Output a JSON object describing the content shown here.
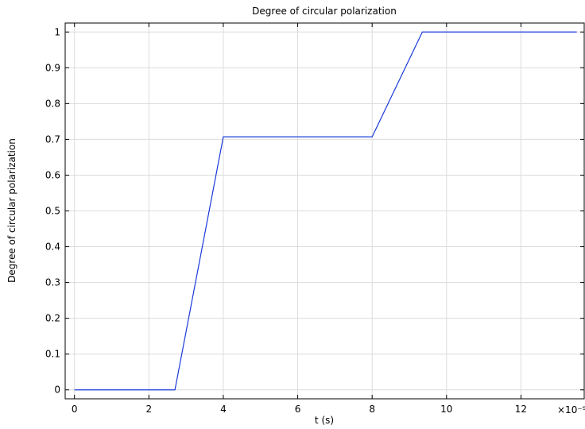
{
  "chart_data": {
    "type": "line",
    "title": "Degree of circular polarization",
    "xlabel": "t (s)",
    "ylabel": "Degree of circular polarization",
    "x_multiplier": "×10⁻⁹",
    "xlim": [
      -0.25,
      13.7
    ],
    "ylim": [
      -0.025,
      1.025
    ],
    "x_ticks": [
      0,
      2,
      4,
      6,
      8,
      10,
      12
    ],
    "x_tick_labels": [
      "0",
      "2",
      "4",
      "6",
      "8",
      "10",
      "12"
    ],
    "y_ticks": [
      0,
      0.1,
      0.2,
      0.3,
      0.4,
      0.5,
      0.6,
      0.7,
      0.8,
      0.9,
      1
    ],
    "y_tick_labels": [
      "0",
      "0.1",
      "0.2",
      "0.3",
      "0.4",
      "0.5",
      "0.6",
      "0.7",
      "0.8",
      "0.9",
      "1"
    ],
    "grid": true,
    "series": [
      {
        "color": "#1a3adb",
        "x": [
          0,
          2.7,
          4.0,
          8.0,
          9.35,
          13.5
        ],
        "y": [
          0,
          0,
          0.707,
          0.707,
          1,
          1
        ]
      }
    ]
  }
}
